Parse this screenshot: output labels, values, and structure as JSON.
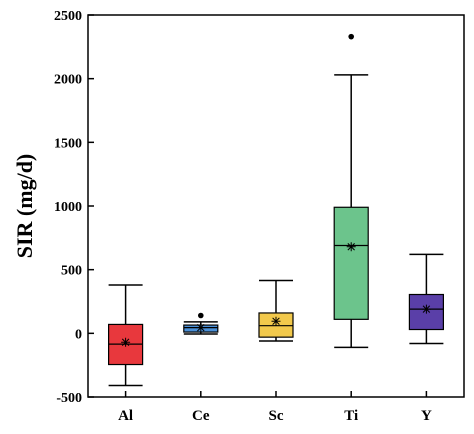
{
  "chart_data": {
    "type": "box",
    "title": "",
    "xlabel": "",
    "ylabel": "SIR (mg/d)",
    "ylim": [
      -500,
      2500
    ],
    "yticks": [
      -500,
      0,
      500,
      1000,
      1500,
      2000,
      2500
    ],
    "ytick_labels": [
      "-500",
      "0",
      "500",
      "1000",
      "1500",
      "2000",
      "2500"
    ],
    "grid": false,
    "legend": "none",
    "categories": [
      "Al",
      "Ce",
      "Sc",
      "Ti",
      "Y"
    ],
    "boxes": [
      {
        "category": "Al",
        "whisker_low": -410,
        "q1": -245,
        "median": -85,
        "q3": 70,
        "whisker_high": 380,
        "mean": -70,
        "outliers": [],
        "color": "#e8383d"
      },
      {
        "category": "Ce",
        "whisker_low": -5,
        "q1": 10,
        "median": 45,
        "q3": 65,
        "whisker_high": 90,
        "mean": 45,
        "outliers": [
          140
        ],
        "color": "#4a8fd6"
      },
      {
        "category": "Sc",
        "whisker_low": -60,
        "q1": -30,
        "median": 60,
        "q3": 160,
        "whisker_high": 415,
        "mean": 95,
        "outliers": [],
        "color": "#f2c94c"
      },
      {
        "category": "Ti",
        "whisker_low": -110,
        "q1": 110,
        "median": 690,
        "q3": 990,
        "whisker_high": 2030,
        "mean": 680,
        "outliers": [
          2330
        ],
        "color": "#6cc48c"
      },
      {
        "category": "Y",
        "whisker_low": -80,
        "q1": 30,
        "median": 190,
        "q3": 305,
        "whisker_high": 620,
        "mean": 190,
        "outliers": [],
        "color": "#5a3fa8"
      }
    ]
  }
}
